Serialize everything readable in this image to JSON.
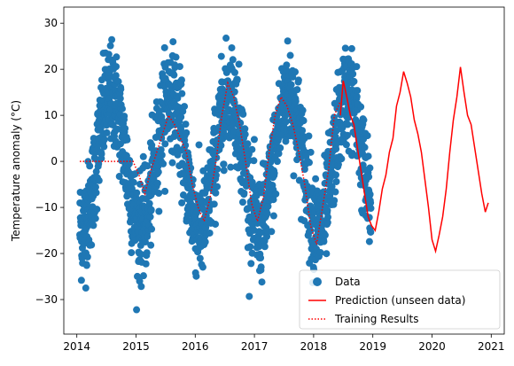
{
  "chart_data": {
    "type": "scatter",
    "title": "",
    "xlabel": "",
    "ylabel": "Temperature anomaly (°C)",
    "xlim": [
      2013.78,
      2021.22
    ],
    "ylim": [
      -37.5,
      33.5
    ],
    "x_ticks": [
      2014,
      2015,
      2016,
      2017,
      2018,
      2019,
      2020,
      2021
    ],
    "y_ticks": [
      -30,
      -20,
      -10,
      0,
      10,
      20,
      30
    ],
    "grid": false,
    "legend_position": "lower-right",
    "colors": {
      "data": "#1f77b4",
      "prediction": "#ff0000",
      "training": "#ff0000"
    },
    "series": [
      {
        "name": "Data",
        "kind": "scatter",
        "model": {
          "x_start": 2014.05,
          "x_end": 2018.97,
          "mean_offset": 0,
          "amplitude": 14.5,
          "period": 1.0,
          "peak_phase": 0.58,
          "noise_sd": 5.5
        }
      },
      {
        "name": "Prediction (unseen data)",
        "kind": "line",
        "points": [
          [
            2018.45,
            10
          ],
          [
            2018.5,
            17.5
          ],
          [
            2018.56,
            14
          ],
          [
            2018.62,
            10
          ],
          [
            2018.68,
            8
          ],
          [
            2018.74,
            3
          ],
          [
            2018.8,
            -2
          ],
          [
            2018.86,
            -7
          ],
          [
            2018.92,
            -12
          ],
          [
            2018.98,
            -14
          ],
          [
            2019.04,
            -15
          ],
          [
            2019.1,
            -11
          ],
          [
            2019.16,
            -6
          ],
          [
            2019.22,
            -3
          ],
          [
            2019.28,
            2
          ],
          [
            2019.34,
            5
          ],
          [
            2019.4,
            12
          ],
          [
            2019.46,
            15
          ],
          [
            2019.52,
            19.5
          ],
          [
            2019.58,
            17
          ],
          [
            2019.64,
            14
          ],
          [
            2019.7,
            9
          ],
          [
            2019.76,
            6
          ],
          [
            2019.82,
            2
          ],
          [
            2019.88,
            -4
          ],
          [
            2019.94,
            -10
          ],
          [
            2020.0,
            -17
          ],
          [
            2020.06,
            -19.5
          ],
          [
            2020.12,
            -16
          ],
          [
            2020.18,
            -12
          ],
          [
            2020.24,
            -6
          ],
          [
            2020.3,
            2
          ],
          [
            2020.36,
            9
          ],
          [
            2020.42,
            14
          ],
          [
            2020.48,
            20.5
          ],
          [
            2020.54,
            15
          ],
          [
            2020.6,
            10
          ],
          [
            2020.66,
            8
          ],
          [
            2020.72,
            3
          ],
          [
            2020.78,
            -2
          ],
          [
            2020.84,
            -7
          ],
          [
            2020.9,
            -11
          ],
          [
            2020.95,
            -9
          ]
        ]
      },
      {
        "name": "Training Results",
        "kind": "dotted-line",
        "points": [
          [
            2014.05,
            0
          ],
          [
            2014.5,
            0
          ],
          [
            2014.95,
            0
          ],
          [
            2015.05,
            -3
          ],
          [
            2015.15,
            -7
          ],
          [
            2015.25,
            -2
          ],
          [
            2015.35,
            2
          ],
          [
            2015.45,
            6
          ],
          [
            2015.55,
            10
          ],
          [
            2015.65,
            8
          ],
          [
            2015.75,
            5
          ],
          [
            2015.85,
            2
          ],
          [
            2015.95,
            -5
          ],
          [
            2016.05,
            -10
          ],
          [
            2016.15,
            -13
          ],
          [
            2016.25,
            -8
          ],
          [
            2016.35,
            0
          ],
          [
            2016.45,
            10
          ],
          [
            2016.55,
            17
          ],
          [
            2016.65,
            14
          ],
          [
            2016.75,
            8
          ],
          [
            2016.85,
            0
          ],
          [
            2016.95,
            -9
          ],
          [
            2017.05,
            -13
          ],
          [
            2017.15,
            -8
          ],
          [
            2017.25,
            2
          ],
          [
            2017.35,
            10
          ],
          [
            2017.45,
            14
          ],
          [
            2017.55,
            12
          ],
          [
            2017.65,
            8
          ],
          [
            2017.75,
            2
          ],
          [
            2017.85,
            -5
          ],
          [
            2017.95,
            -14
          ],
          [
            2018.05,
            -18
          ],
          [
            2018.15,
            -10
          ],
          [
            2018.25,
            -2
          ],
          [
            2018.35,
            10
          ],
          [
            2018.45,
            13
          ]
        ]
      }
    ]
  }
}
